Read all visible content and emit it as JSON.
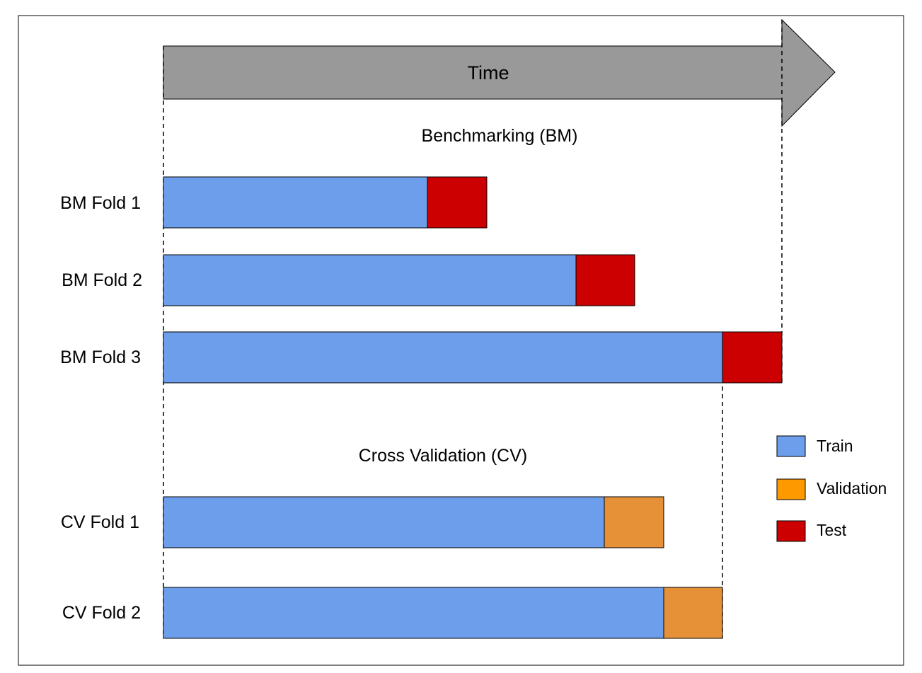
{
  "time_label": "Time",
  "sections": {
    "benchmarking": "Benchmarking (BM)",
    "cross_validation": "Cross Validation (CV)"
  },
  "folds": [
    {
      "label": "BM Fold 1",
      "section": "benchmarking",
      "segments": [
        "train",
        "test"
      ]
    },
    {
      "label": "BM Fold 2",
      "section": "benchmarking",
      "segments": [
        "train",
        "test"
      ]
    },
    {
      "label": "BM Fold 3",
      "section": "benchmarking",
      "segments": [
        "train",
        "test"
      ]
    },
    {
      "label": "CV Fold 1",
      "section": "cross_validation",
      "segments": [
        "train",
        "validation"
      ]
    },
    {
      "label": "CV Fold 2",
      "section": "cross_validation",
      "segments": [
        "train",
        "validation"
      ]
    }
  ],
  "legend": {
    "train": "Train",
    "validation": "Validation",
    "test": "Test"
  },
  "colors": {
    "arrow": "#999999",
    "train": "#6d9eeb",
    "validation": "#e69138",
    "validation_swatch": "#ff9900",
    "test": "#cc0000",
    "outline": "#000000"
  }
}
